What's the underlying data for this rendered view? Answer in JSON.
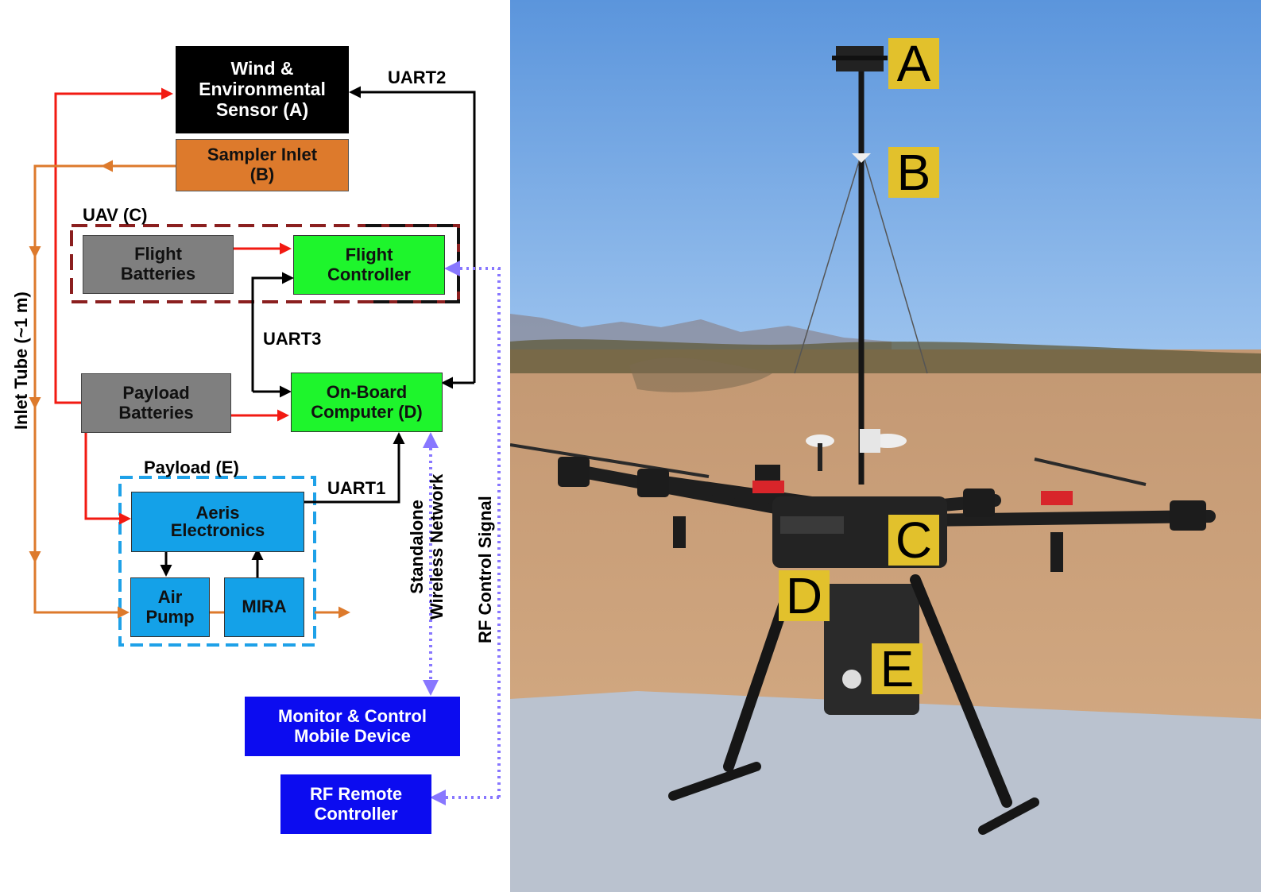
{
  "diagram": {
    "blocks": {
      "wind_sensor": [
        "Wind &",
        "Environmental",
        "Sensor (A)"
      ],
      "sampler_inlet": [
        "Sampler Inlet",
        "(B)"
      ],
      "flight_batteries": [
        "Flight",
        "Batteries"
      ],
      "flight_controller": [
        "Flight",
        "Controller"
      ],
      "payload_batteries": [
        "Payload",
        "Batteries"
      ],
      "onboard_computer": [
        "On-Board",
        "Computer (D)"
      ],
      "aeris_electronics": [
        "Aeris",
        "Electronics"
      ],
      "air_pump": [
        "Air",
        "Pump"
      ],
      "mira": [
        "MIRA"
      ],
      "monitor_device": [
        "Monitor & Control",
        "Mobile Device"
      ],
      "rf_remote": [
        "RF Remote",
        "Controller"
      ]
    },
    "group_labels": {
      "uav": "UAV (C)",
      "payload": "Payload (E)"
    },
    "link_labels": {
      "uart1": "UART1",
      "uart2": "UART2",
      "uart3": "UART3",
      "inlet_tube": "Inlet Tube (~1 m)",
      "wireless": [
        "Standalone",
        "Wireless Network"
      ],
      "rf_signal": "RF Control Signal"
    },
    "colors": {
      "power": "#f21a12",
      "air_flow": "#dd7a2c",
      "data": "#000000",
      "wireless": "#8877ff",
      "uav_group": "#8b1f1f",
      "payload_group": "#1ea1e8",
      "green_block": "#1ef52c",
      "gray_block": "#7f7f7f",
      "blue_block": "#14a1e8",
      "navy_block": "#0c0cf0",
      "orange_block": "#dd7a2c"
    }
  },
  "photo": {
    "labels": [
      "A",
      "B",
      "C",
      "D",
      "E"
    ],
    "tag_color": "#e2c12c"
  }
}
